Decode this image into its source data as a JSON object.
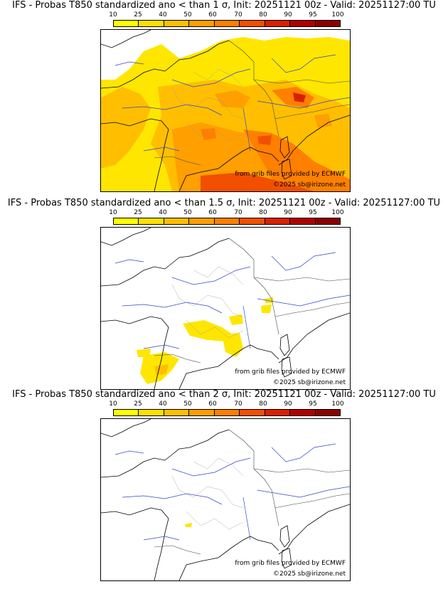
{
  "colorbar": {
    "labels": [
      "10",
      "25",
      "40",
      "50",
      "60",
      "70",
      "80",
      "90",
      "95",
      "100"
    ],
    "colors": [
      "#ffff00",
      "#ffe000",
      "#ffbf00",
      "#ff9f00",
      "#ff7f00",
      "#f25000",
      "#d92000",
      "#b20000",
      "#8c0000",
      "#5a0000"
    ]
  },
  "panels": [
    {
      "title": "IFS - Probas T850  standardized ano < than 1 σ, Init: 20251121 00z - Valid: 20251127:00 TU",
      "credit_source": "from grib files provided by ECMWF",
      "credit_copyright": "©2025 sb@irizone.net",
      "probability_level": "high"
    },
    {
      "title": "IFS - Probas T850  standardized ano < than 1.5 σ, Init: 20251121 00z - Valid: 20251127:00 TU",
      "credit_source": "from grib files provided by ECMWF",
      "credit_copyright": "©2025 sb@irizone.net",
      "probability_level": "low"
    },
    {
      "title": "IFS - Probas T850  standardized ano < than 2 σ, Init: 20251121 00z - Valid: 20251127:00 TU",
      "credit_source": "from grib files provided by ECMWF",
      "credit_copyright": "©2025 sb@irizone.net",
      "probability_level": "minimal"
    }
  ]
}
